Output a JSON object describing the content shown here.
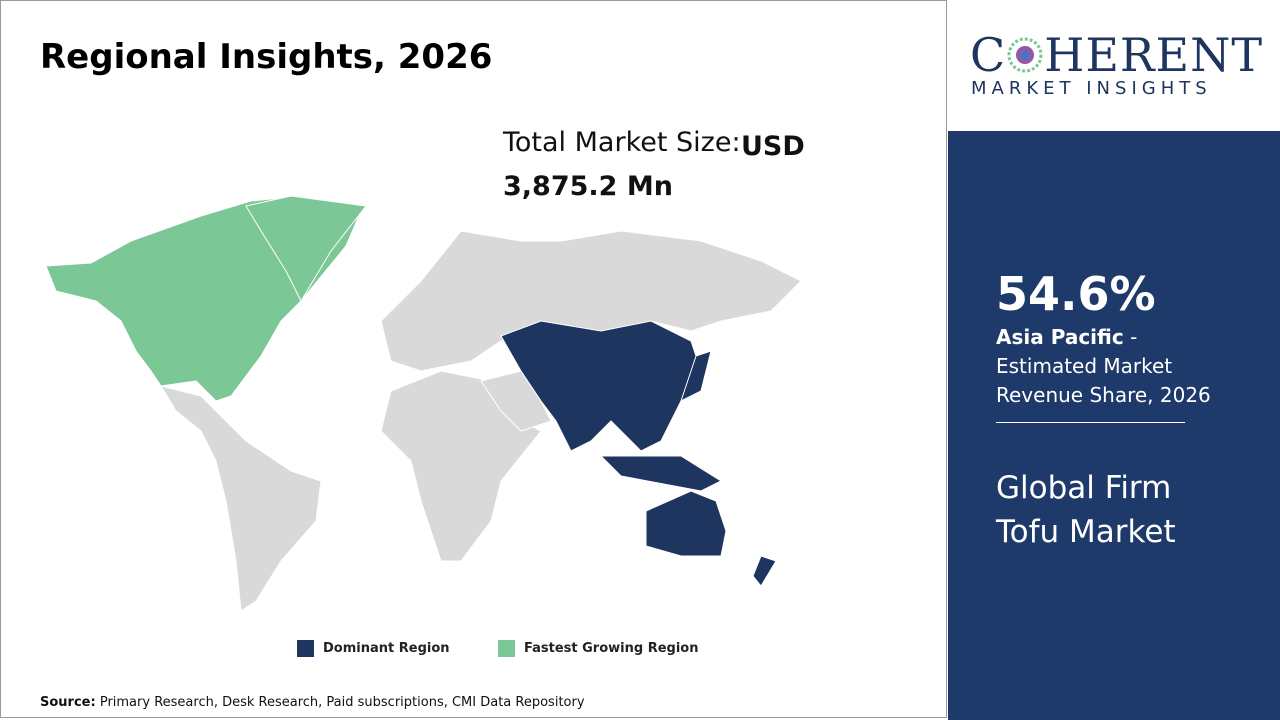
{
  "header": {
    "title": "Regional Insights, 2026"
  },
  "market_size": {
    "label": "Total Market Size:",
    "value": "USD 3,875.2 Mn"
  },
  "legend": {
    "items": [
      "Dominant Region",
      "Fastest Growing Region"
    ]
  },
  "source": {
    "label": "Source:",
    "text": "Primary Research, Desk Research, Paid subscriptions, CMI Data Repository"
  },
  "logo": {
    "brand_start": "C",
    "brand_end": "HERENT",
    "tagline": "MARKET INSIGHTS"
  },
  "side_panel": {
    "share": "54.6%",
    "region": "Asia Pacific",
    "description": "- Estimated Market Revenue Share, 2026",
    "market_name": "Global Firm Tofu Market"
  }
}
